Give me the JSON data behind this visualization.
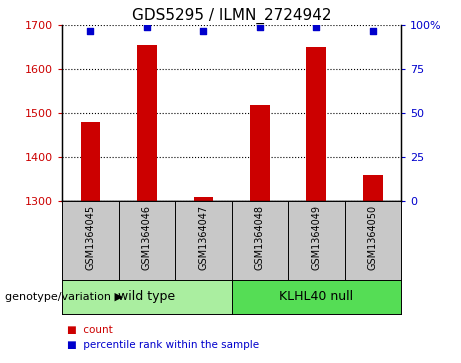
{
  "title": "GDS5295 / ILMN_2724942",
  "samples": [
    "GSM1364045",
    "GSM1364046",
    "GSM1364047",
    "GSM1364048",
    "GSM1364049",
    "GSM1364050"
  ],
  "counts": [
    1480,
    1655,
    1310,
    1520,
    1652,
    1360
  ],
  "percentile_ranks": [
    97,
    99,
    97,
    99,
    99,
    97
  ],
  "ylim_left": [
    1300,
    1700
  ],
  "ylim_right": [
    0,
    100
  ],
  "yticks_left": [
    1300,
    1400,
    1500,
    1600,
    1700
  ],
  "yticks_right": [
    0,
    25,
    50,
    75,
    100
  ],
  "bar_color": "#CC0000",
  "dot_color": "#0000CC",
  "bar_width": 0.35,
  "x_positions": [
    0,
    1,
    2,
    3,
    4,
    5
  ],
  "legend_count_label": "count",
  "legend_percentile_label": "percentile rank within the sample",
  "genotype_label": "genotype/variation",
  "wt_label": "wild type",
  "klhl_label": "KLHL40 null",
  "sample_box_color": "#C8C8C8",
  "wt_color": "#AAEEA0",
  "klhl_color": "#55DD55",
  "title_fontsize": 11,
  "tick_fontsize": 8,
  "sample_fontsize": 7,
  "legend_fontsize": 7.5,
  "group_fontsize": 9,
  "genotype_fontsize": 8
}
